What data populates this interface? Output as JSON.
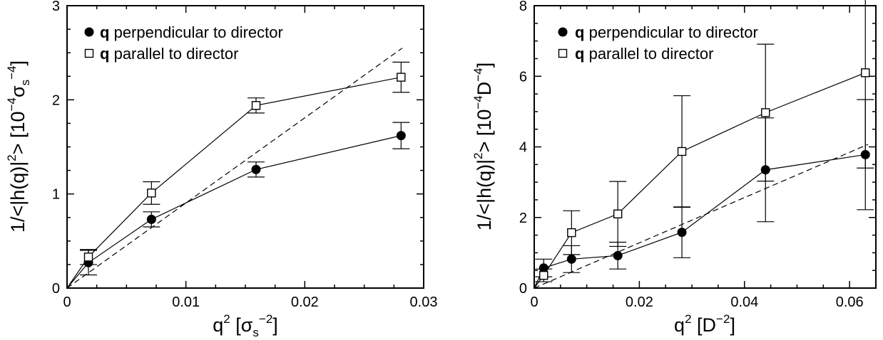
{
  "chart_data": [
    {
      "type": "line",
      "xlim": [
        0,
        0.03
      ],
      "ylim": [
        0,
        3
      ],
      "xticks": [
        "0",
        "0.01",
        "0.02",
        "0.03"
      ],
      "yticks": [
        "0",
        "1",
        "2",
        "3"
      ],
      "xlabel": {
        "base": "q",
        "exp": "2",
        "unit_open": "[σ",
        "unit_sub": "s",
        "unit_exp": "−2",
        "unit_close": "]"
      },
      "ylabel": {
        "text": "1/<|h(q)|",
        "exp": "2",
        "close": ">",
        "unit_open": "[10",
        "unit_exp": "−4",
        "unit_mid": "σ",
        "unit_sub": "s",
        "unit_exp2": "−4",
        "unit_close": "]"
      },
      "legend_position": "top-left",
      "series": [
        {
          "name": "perpendicular to director",
          "marker": "filled-circle",
          "x": [
            0,
            0.0018,
            0.0071,
            0.0159,
            0.0281
          ],
          "y": [
            0,
            0.27,
            0.73,
            1.26,
            1.62
          ],
          "err": [
            0,
            0.13,
            0.08,
            0.08,
            0.14
          ]
        },
        {
          "name": "parallel to director",
          "marker": "open-square",
          "x": [
            0,
            0.0018,
            0.0071,
            0.0159,
            0.0281
          ],
          "y": [
            0,
            0.33,
            1.01,
            1.94,
            2.24
          ],
          "err": [
            0,
            0.08,
            0.12,
            0.08,
            0.16
          ]
        }
      ],
      "reference_line": {
        "style": "dashed",
        "x": [
          0,
          0.0282
        ],
        "y": [
          0,
          2.55
        ]
      }
    },
    {
      "type": "line",
      "xlim": [
        0,
        0.065
      ],
      "ylim": [
        0,
        8
      ],
      "xticks": [
        "0",
        "0.02",
        "0.04",
        "0.06"
      ],
      "yticks": [
        "0",
        "2",
        "4",
        "6",
        "8"
      ],
      "xlabel": {
        "base": "q",
        "exp": "2",
        "unit_open": "[D",
        "unit_exp": "−2",
        "unit_close": "]"
      },
      "ylabel": {
        "text": "1/<|h(q)|",
        "exp": "2",
        "close": ">",
        "unit_open": "[10",
        "unit_exp": "−4",
        "unit_mid": "D",
        "unit_exp2": "−4",
        "unit_close": "]"
      },
      "legend_position": "top-left",
      "series": [
        {
          "name": "perpendicular to director",
          "marker": "filled-circle",
          "x": [
            0,
            0.0018,
            0.0071,
            0.0159,
            0.0281,
            0.044,
            0.063
          ],
          "y": [
            0,
            0.57,
            0.82,
            0.92,
            1.58,
            3.35,
            3.78
          ],
          "err": [
            0,
            0.25,
            0.38,
            0.38,
            0.72,
            1.47,
            1.56
          ]
        },
        {
          "name": "parallel to director",
          "marker": "open-square",
          "x": [
            0,
            0.0018,
            0.0071,
            0.0159,
            0.0281,
            0.044,
            0.063
          ],
          "y": [
            0,
            0.36,
            1.57,
            2.1,
            3.87,
            4.97,
            6.1
          ],
          "err": [
            0,
            0.18,
            0.62,
            0.92,
            1.58,
            1.94,
            2.7
          ]
        }
      ],
      "reference_line": {
        "style": "dashed",
        "x": [
          0,
          0.0635
        ],
        "y": [
          0,
          4.07
        ]
      }
    }
  ],
  "legend_bold_prefix": "q"
}
